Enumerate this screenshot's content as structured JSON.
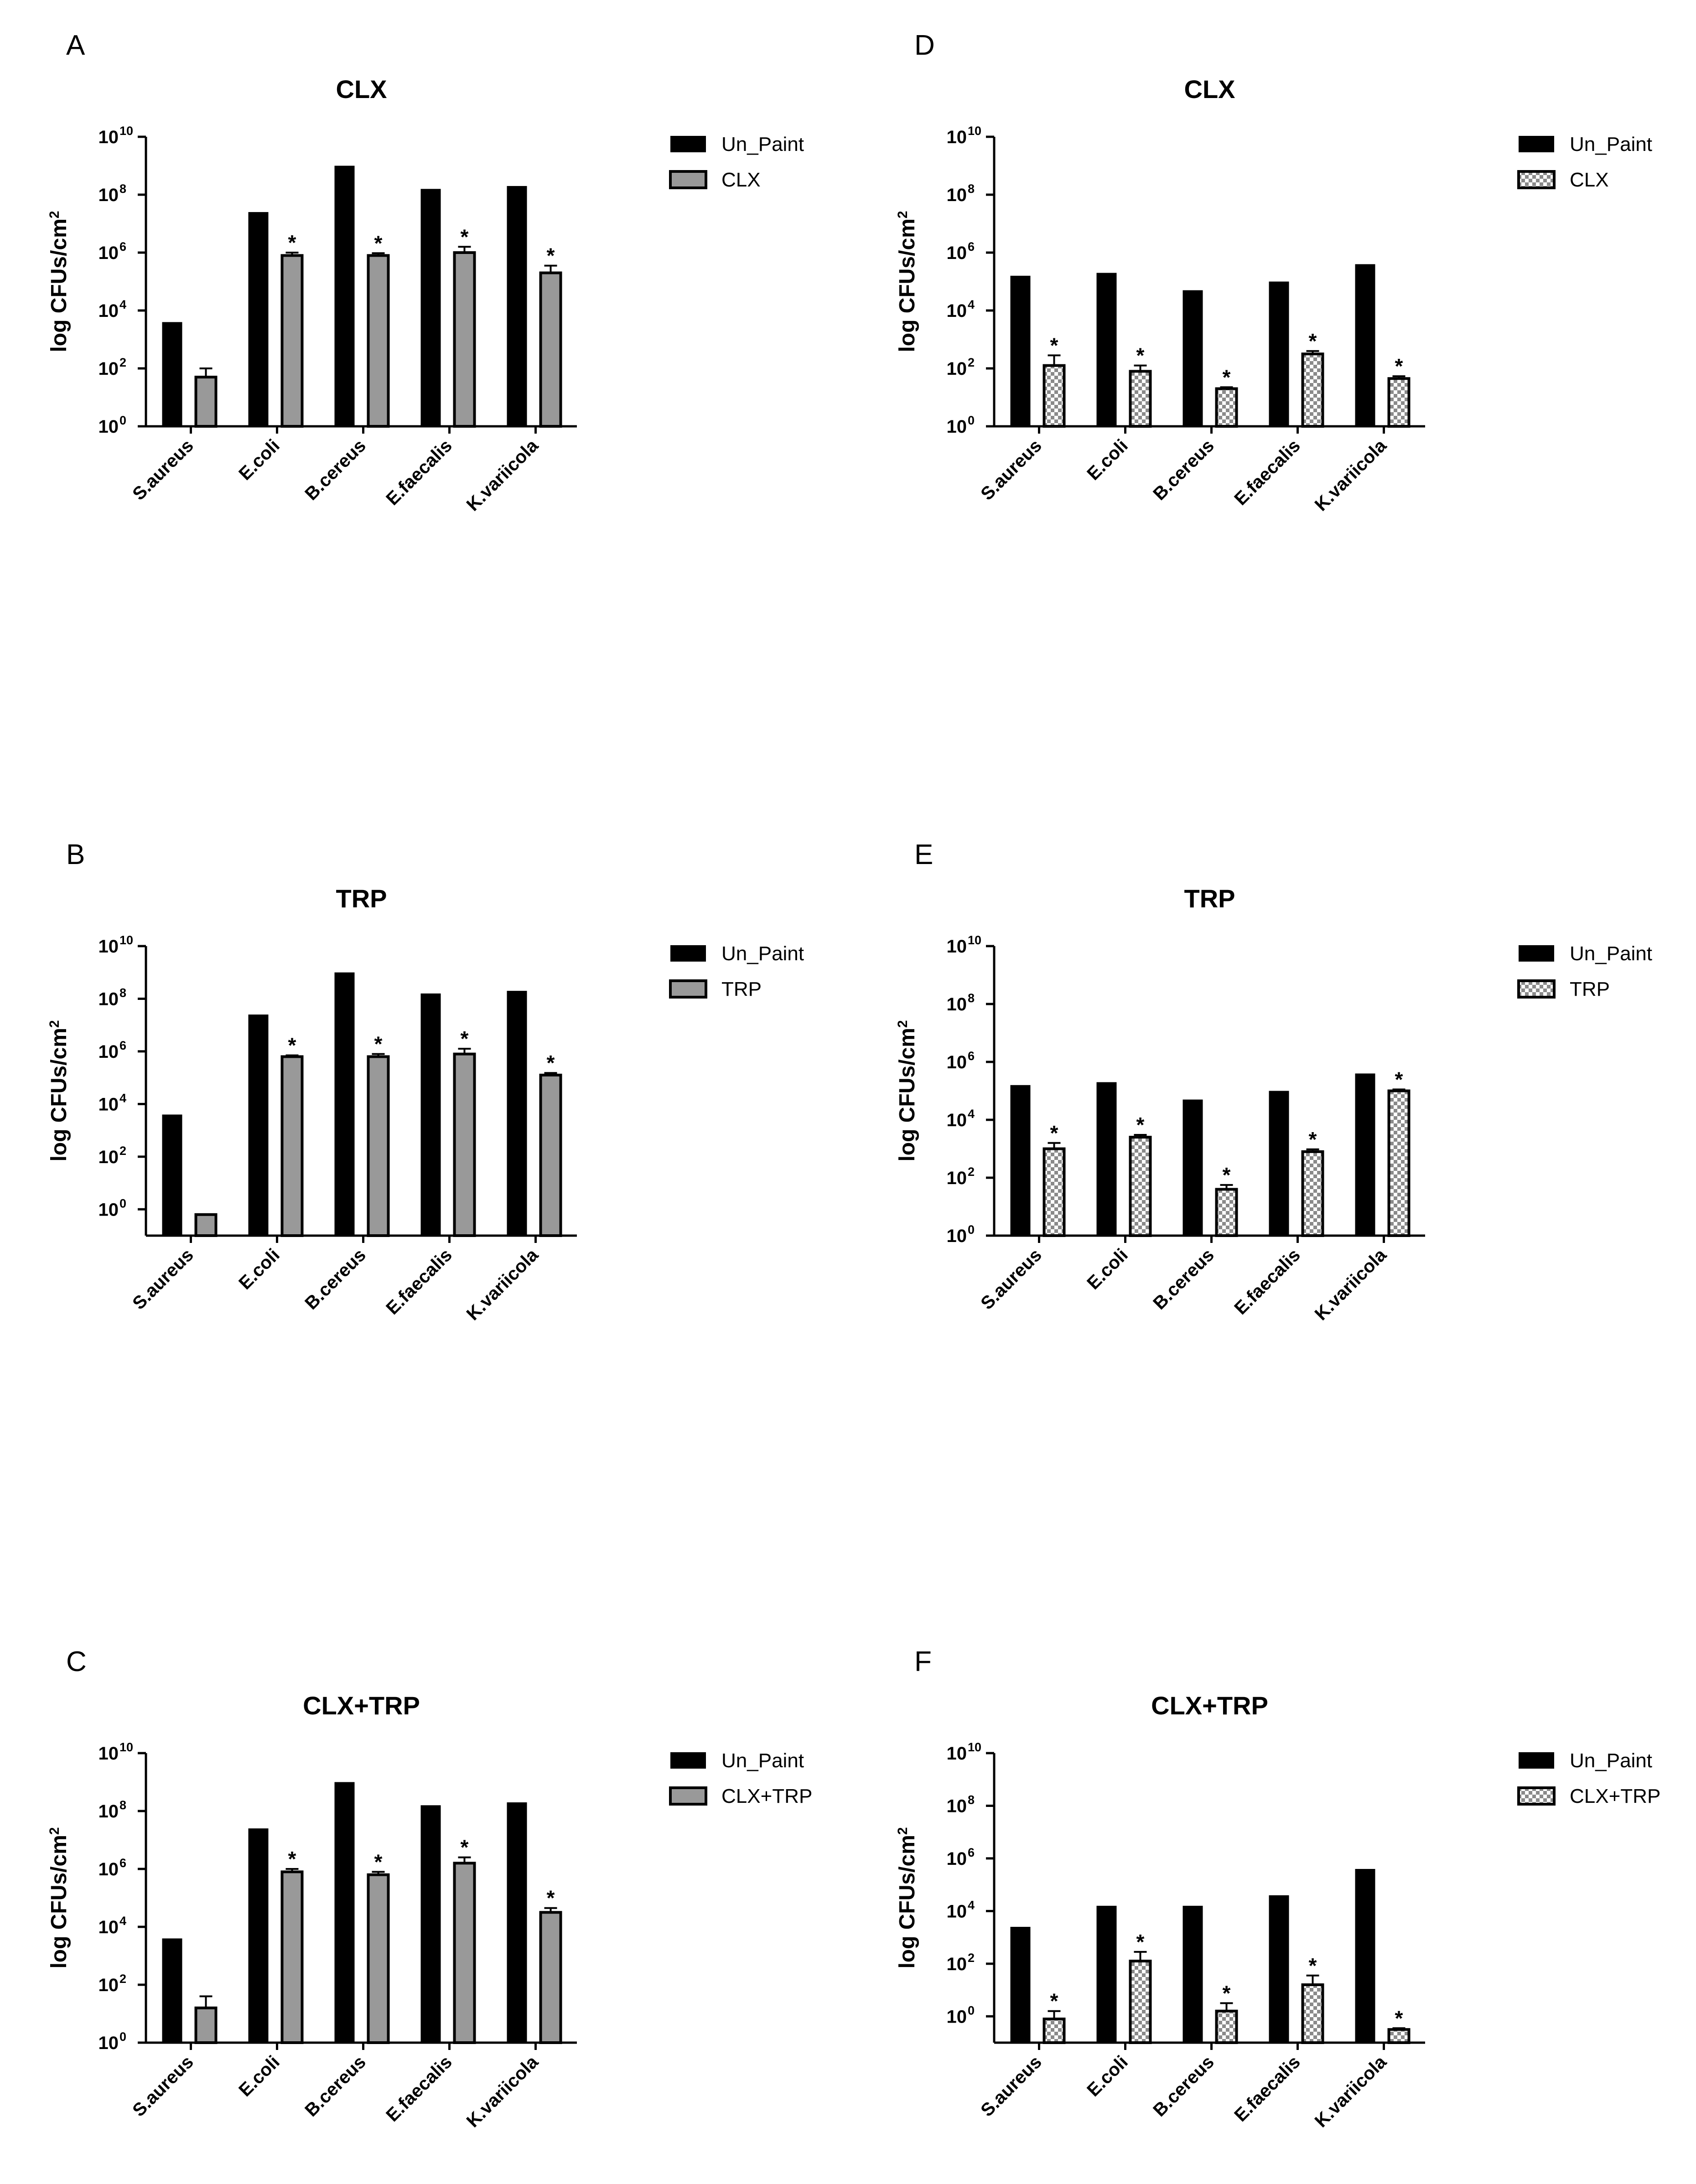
{
  "colors": {
    "un_paint": "#000000",
    "treated_gray": "#999999",
    "checker_light": "#ffffff",
    "checker_dark": "#8a8a8a",
    "axis": "#000000"
  },
  "chart_data": [
    {
      "panel": "A",
      "type": "bar",
      "title": "CLX",
      "ylabel": "log CFUs/cm2",
      "yscale": "log10",
      "ylim_exponent": [
        0,
        10
      ],
      "yticks": [
        {
          "base": "10",
          "exp": "0"
        },
        {
          "base": "10",
          "exp": "2"
        },
        {
          "base": "10",
          "exp": "4"
        },
        {
          "base": "10",
          "exp": "6"
        },
        {
          "base": "10",
          "exp": "8"
        },
        {
          "base": "10",
          "exp": "10"
        }
      ],
      "categories": [
        "S.aureus",
        "E.coli",
        "B.cereus",
        "E.faecalis",
        "K.variicola"
      ],
      "series": [
        {
          "name": "Un_Paint",
          "style": "black",
          "log_values": [
            3.6,
            7.4,
            9.0,
            8.2,
            8.3
          ],
          "error": [
            0,
            0,
            0,
            0,
            0
          ],
          "significant": [
            false,
            false,
            false,
            false,
            false
          ]
        },
        {
          "name": "CLX",
          "style": "gray",
          "log_values": [
            1.7,
            5.9,
            5.9,
            6.0,
            5.3
          ],
          "error": [
            0.3,
            0.1,
            0.08,
            0.2,
            0.25
          ],
          "significant": [
            false,
            true,
            true,
            true,
            true
          ]
        }
      ],
      "legend": [
        "Un_Paint",
        "CLX"
      ],
      "significance_marker": "*"
    },
    {
      "panel": "B",
      "type": "bar",
      "title": "TRP",
      "ylabel": "log CFUs/cm2",
      "yscale": "log10",
      "ylim_exponent": [
        -1,
        10
      ],
      "yticks": [
        {
          "base": "10",
          "exp": "0"
        },
        {
          "base": "10",
          "exp": "2"
        },
        {
          "base": "10",
          "exp": "4"
        },
        {
          "base": "10",
          "exp": "6"
        },
        {
          "base": "10",
          "exp": "8"
        },
        {
          "base": "10",
          "exp": "10"
        }
      ],
      "categories": [
        "S.aureus",
        "E.coli",
        "B.cereus",
        "E.faecalis",
        "K.variicola"
      ],
      "series": [
        {
          "name": "Un_Paint",
          "style": "black",
          "log_values": [
            3.6,
            7.4,
            9.0,
            8.2,
            8.3
          ],
          "error": [
            0,
            0,
            0,
            0,
            0
          ],
          "significant": [
            false,
            false,
            false,
            false,
            false
          ]
        },
        {
          "name": "TRP",
          "style": "gray",
          "log_values": [
            -0.2,
            5.8,
            5.8,
            5.9,
            5.1
          ],
          "error": [
            0,
            0.05,
            0.1,
            0.2,
            0.08
          ],
          "significant": [
            false,
            true,
            true,
            true,
            true
          ]
        }
      ],
      "legend": [
        "Un_Paint",
        "TRP"
      ],
      "significance_marker": "*"
    },
    {
      "panel": "C",
      "type": "bar",
      "title": "CLX+TRP",
      "ylabel": "log CFUs/cm2",
      "yscale": "log10",
      "ylim_exponent": [
        0,
        10
      ],
      "yticks": [
        {
          "base": "10",
          "exp": "0"
        },
        {
          "base": "10",
          "exp": "2"
        },
        {
          "base": "10",
          "exp": "4"
        },
        {
          "base": "10",
          "exp": "6"
        },
        {
          "base": "10",
          "exp": "8"
        },
        {
          "base": "10",
          "exp": "10"
        }
      ],
      "categories": [
        "S.aureus",
        "E.coli",
        "B.cereus",
        "E.faecalis",
        "K.variicola"
      ],
      "series": [
        {
          "name": "Un_Paint",
          "style": "black",
          "log_values": [
            3.6,
            7.4,
            9.0,
            8.2,
            8.3
          ],
          "error": [
            0,
            0,
            0,
            0,
            0
          ],
          "significant": [
            false,
            false,
            false,
            false,
            false
          ]
        },
        {
          "name": "CLX+TRP",
          "style": "gray",
          "log_values": [
            1.2,
            5.9,
            5.8,
            6.2,
            4.5
          ],
          "error": [
            0.4,
            0.1,
            0.1,
            0.2,
            0.15
          ],
          "significant": [
            false,
            true,
            true,
            true,
            true
          ]
        }
      ],
      "legend": [
        "Un_Paint",
        "CLX+TRP"
      ],
      "significance_marker": "*"
    },
    {
      "panel": "D",
      "type": "bar",
      "title": "CLX",
      "ylabel": "log CFUs/cm2",
      "yscale": "log10",
      "ylim_exponent": [
        0,
        10
      ],
      "yticks": [
        {
          "base": "10",
          "exp": "0"
        },
        {
          "base": "10",
          "exp": "2"
        },
        {
          "base": "10",
          "exp": "4"
        },
        {
          "base": "10",
          "exp": "6"
        },
        {
          "base": "10",
          "exp": "8"
        },
        {
          "base": "10",
          "exp": "10"
        }
      ],
      "categories": [
        "S.aureus",
        "E.coli",
        "B.cereus",
        "E.faecalis",
        "K.variicola"
      ],
      "series": [
        {
          "name": "Un_Paint",
          "style": "black",
          "log_values": [
            5.2,
            5.3,
            4.7,
            5.0,
            5.6
          ],
          "error": [
            0,
            0,
            0,
            0,
            0
          ],
          "significant": [
            false,
            false,
            false,
            false,
            false
          ]
        },
        {
          "name": "CLX",
          "style": "checker",
          "log_values": [
            2.1,
            1.9,
            1.3,
            2.5,
            1.65
          ],
          "error": [
            0.35,
            0.2,
            0.05,
            0.1,
            0.08
          ],
          "significant": [
            true,
            true,
            true,
            true,
            true
          ]
        }
      ],
      "legend": [
        "Un_Paint",
        "CLX"
      ],
      "significance_marker": "*"
    },
    {
      "panel": "E",
      "type": "bar",
      "title": "TRP",
      "ylabel": "log CFUs/cm2",
      "yscale": "log10",
      "ylim_exponent": [
        0,
        10
      ],
      "yticks": [
        {
          "base": "10",
          "exp": "0"
        },
        {
          "base": "10",
          "exp": "2"
        },
        {
          "base": "10",
          "exp": "4"
        },
        {
          "base": "10",
          "exp": "6"
        },
        {
          "base": "10",
          "exp": "8"
        },
        {
          "base": "10",
          "exp": "10"
        }
      ],
      "categories": [
        "S.aureus",
        "E.coli",
        "B.cereus",
        "E.faecalis",
        "K.variicola"
      ],
      "series": [
        {
          "name": "Un_Paint",
          "style": "black",
          "log_values": [
            5.2,
            5.3,
            4.7,
            5.0,
            5.6
          ],
          "error": [
            0,
            0,
            0,
            0,
            0
          ],
          "significant": [
            false,
            false,
            false,
            false,
            false
          ]
        },
        {
          "name": "TRP",
          "style": "checker",
          "log_values": [
            3.0,
            3.4,
            1.6,
            2.9,
            5.0
          ],
          "error": [
            0.2,
            0.08,
            0.15,
            0.08,
            0.05
          ],
          "significant": [
            true,
            true,
            true,
            true,
            true
          ]
        }
      ],
      "legend": [
        "Un_Paint",
        "TRP"
      ],
      "significance_marker": "*"
    },
    {
      "panel": "F",
      "type": "bar",
      "title": "CLX+TRP",
      "ylabel": "log CFUs/cm2",
      "yscale": "log10",
      "ylim_exponent": [
        -1,
        10
      ],
      "yticks": [
        {
          "base": "10",
          "exp": "0"
        },
        {
          "base": "10",
          "exp": "2"
        },
        {
          "base": "10",
          "exp": "4"
        },
        {
          "base": "10",
          "exp": "6"
        },
        {
          "base": "10",
          "exp": "8"
        },
        {
          "base": "10",
          "exp": "10"
        }
      ],
      "categories": [
        "S.aureus",
        "E.coli",
        "B.cereus",
        "E.faecalis",
        "K.variicola"
      ],
      "series": [
        {
          "name": "Un_Paint",
          "style": "black",
          "log_values": [
            3.4,
            4.2,
            4.2,
            4.6,
            5.6
          ],
          "error": [
            0,
            0,
            0,
            0,
            0
          ],
          "significant": [
            false,
            false,
            false,
            false,
            false
          ]
        },
        {
          "name": "CLX+TRP",
          "style": "checker",
          "log_values": [
            -0.1,
            2.1,
            0.2,
            1.2,
            -0.5
          ],
          "error": [
            0.3,
            0.35,
            0.3,
            0.35,
            0.05
          ],
          "significant": [
            true,
            true,
            true,
            true,
            true
          ]
        }
      ],
      "legend": [
        "Un_Paint",
        "CLX+TRP"
      ],
      "significance_marker": "*"
    }
  ]
}
